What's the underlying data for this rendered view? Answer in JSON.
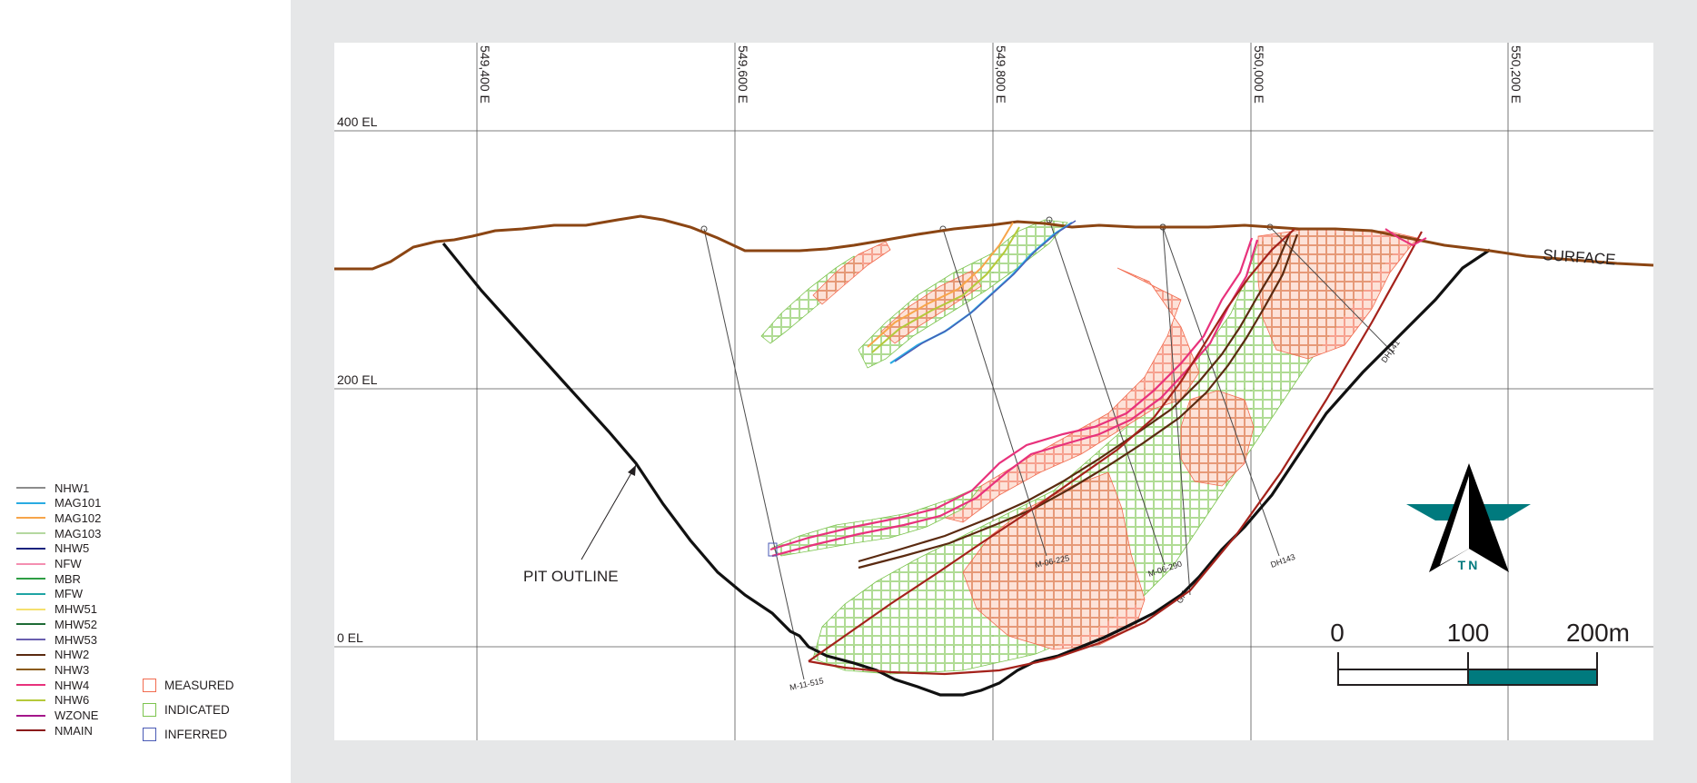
{
  "legend": {
    "lines": [
      {
        "label": "NHW1",
        "color": "#8c8c8c"
      },
      {
        "label": "MAG101",
        "color": "#29abe2"
      },
      {
        "label": "MAG102",
        "color": "#f7a54a"
      },
      {
        "label": "MAG103",
        "color": "#b5d8a0"
      },
      {
        "label": "NHW5",
        "color": "#1a237e"
      },
      {
        "label": "NFW",
        "color": "#f48fb1"
      },
      {
        "label": "MBR",
        "color": "#2e9e44"
      },
      {
        "label": "MFW",
        "color": "#1fa4a4"
      },
      {
        "label": "MHW51",
        "color": "#f5e06e"
      },
      {
        "label": "MHW52",
        "color": "#1e6b36"
      },
      {
        "label": "MHW53",
        "color": "#6a5fb0"
      },
      {
        "label": "NHW2",
        "color": "#5a2a10"
      },
      {
        "label": "NHW3",
        "color": "#8a5a12"
      },
      {
        "label": "NHW4",
        "color": "#e8327c"
      },
      {
        "label": "NHW6",
        "color": "#b5c93a"
      },
      {
        "label": "WZONE",
        "color": "#a4168a"
      },
      {
        "label": "NMAIN",
        "color": "#8b1a1a"
      }
    ],
    "categories": [
      {
        "label": "MEASURED",
        "color": "#f26b4f"
      },
      {
        "label": "INDICATED",
        "color": "#7cc44e"
      },
      {
        "label": "INFERRED",
        "color": "#4a5ab5"
      }
    ]
  },
  "section": {
    "eastings": [
      "549,400 E",
      "549,600 E",
      "549,800 E",
      "550,000 E",
      "550,200 E"
    ],
    "elevations": [
      "400 EL",
      "200 EL",
      "0 EL"
    ],
    "surface_label": "SURFACE",
    "pit_label": "PIT OUTLINE",
    "drillholes": [
      "M-11-515",
      "M-06-225",
      "M-06-290",
      "GI4",
      "DH143",
      "DH141"
    ],
    "colors": {
      "surface": "#8b4513",
      "pit": "#111111",
      "measured": "#f26b4f",
      "indicated": "#7cc44e",
      "nhw4": "#e8327c",
      "nhw2": "#5a2a10",
      "nmain": "#a4221b",
      "mag101": "#29abe2",
      "mag102": "#f7a54a"
    }
  },
  "north_arrow": {
    "label": "TN",
    "color": "#007a7e"
  },
  "scale_bar": {
    "labels": [
      "0",
      "100",
      "200m"
    ],
    "fill_color": "#007a7e"
  }
}
